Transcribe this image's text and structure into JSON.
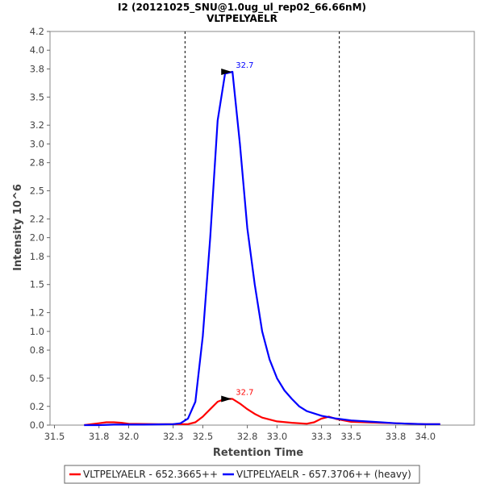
{
  "chart_data": {
    "type": "line",
    "title": "I2 (20121025_SNU@1.0ug_ul_rep02_66.66nM)",
    "subtitle": "VLTPELYAELR",
    "xlabel": "Retention Time",
    "ylabel": "Intensity 10^6",
    "xlim": [
      31.47,
      34.33
    ],
    "ylim": [
      0,
      4.2
    ],
    "x_ticks": [
      31.5,
      31.8,
      32.0,
      32.3,
      32.5,
      32.8,
      33.0,
      33.3,
      33.5,
      33.8,
      34.0
    ],
    "x_tick_labels": [
      "31.5",
      "31.8",
      "32.0",
      "32.3",
      "32.5",
      "32.8",
      "33.0",
      "33.3",
      "33.5",
      "33.8",
      "34.0"
    ],
    "y_ticks": [
      0,
      0.2,
      0.5,
      0.8,
      1.0,
      1.2,
      1.5,
      1.8,
      2.0,
      2.2,
      2.5,
      2.8,
      3.0,
      3.2,
      3.5,
      3.8,
      4.0,
      4.2
    ],
    "y_tick_labels": [
      "0.0",
      "0.2",
      "0.5",
      "0.8",
      "1.0",
      "1.2",
      "1.5",
      "1.8",
      "2.0",
      "2.2",
      "2.5",
      "2.8",
      "3.0",
      "3.2",
      "3.5",
      "3.8",
      "4.0",
      "4.2"
    ],
    "grid": false,
    "legend_position": "bottom",
    "integration_bounds": [
      32.38,
      33.42
    ],
    "series": [
      {
        "name": "VLTPELYAELR - 652.3665++",
        "color": "#ff0000",
        "peak_label": "32.7",
        "peak_x": 32.7,
        "peak_y": 0.28,
        "x": [
          31.7,
          31.8,
          31.85,
          31.9,
          31.95,
          32.0,
          32.1,
          32.2,
          32.3,
          32.4,
          32.45,
          32.5,
          32.55,
          32.6,
          32.65,
          32.7,
          32.75,
          32.8,
          32.85,
          32.9,
          33.0,
          33.1,
          33.2,
          33.25,
          33.3,
          33.35,
          33.4,
          33.5,
          33.6,
          33.7,
          33.8,
          33.9,
          34.0,
          34.1
        ],
        "y": [
          0.0,
          0.02,
          0.03,
          0.03,
          0.025,
          0.015,
          0.012,
          0.01,
          0.01,
          0.01,
          0.03,
          0.09,
          0.17,
          0.25,
          0.28,
          0.28,
          0.23,
          0.17,
          0.12,
          0.08,
          0.04,
          0.025,
          0.015,
          0.03,
          0.07,
          0.09,
          0.065,
          0.035,
          0.03,
          0.025,
          0.02,
          0.015,
          0.01,
          0.01
        ]
      },
      {
        "name": "VLTPELYAELR - 657.3706++ (heavy)",
        "color": "#0000ff",
        "peak_label": "32.7",
        "peak_x": 32.7,
        "peak_y": 3.77,
        "x": [
          31.7,
          31.8,
          31.9,
          32.0,
          32.1,
          32.2,
          32.3,
          32.35,
          32.4,
          32.45,
          32.5,
          32.55,
          32.6,
          32.65,
          32.7,
          32.75,
          32.8,
          32.85,
          32.9,
          32.95,
          33.0,
          33.05,
          33.1,
          33.15,
          33.2,
          33.3,
          33.4,
          33.5,
          33.6,
          33.7,
          33.8,
          33.9,
          34.0,
          34.1
        ],
        "y": [
          0.0,
          0.0,
          0.005,
          0.005,
          0.005,
          0.008,
          0.01,
          0.02,
          0.07,
          0.25,
          0.95,
          2.0,
          3.25,
          3.75,
          3.77,
          3.0,
          2.1,
          1.5,
          1.0,
          0.7,
          0.5,
          0.37,
          0.28,
          0.2,
          0.15,
          0.1,
          0.07,
          0.05,
          0.04,
          0.03,
          0.02,
          0.015,
          0.01,
          0.01
        ]
      }
    ]
  }
}
